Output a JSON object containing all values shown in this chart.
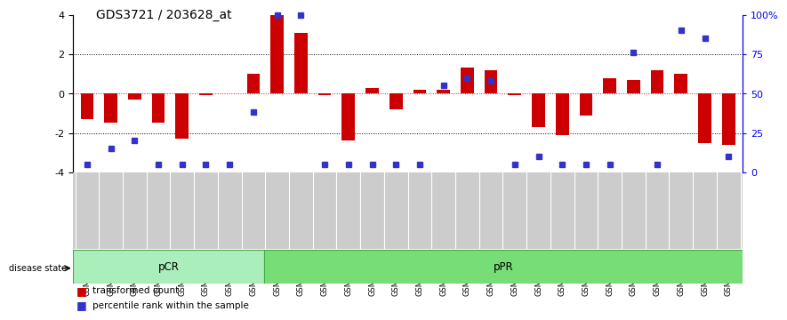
{
  "title": "GDS3721 / 203628_at",
  "samples": [
    "GSM559062",
    "GSM559063",
    "GSM559064",
    "GSM559065",
    "GSM559066",
    "GSM559067",
    "GSM559068",
    "GSM559069",
    "GSM559042",
    "GSM559043",
    "GSM559044",
    "GSM559045",
    "GSM559046",
    "GSM559047",
    "GSM559048",
    "GSM559049",
    "GSM559050",
    "GSM559051",
    "GSM559052",
    "GSM559053",
    "GSM559054",
    "GSM559055",
    "GSM559056",
    "GSM559057",
    "GSM559058",
    "GSM559059",
    "GSM559060",
    "GSM559061"
  ],
  "transformed_counts": [
    -1.3,
    -1.5,
    -0.3,
    -1.5,
    -2.3,
    -0.1,
    0.0,
    1.0,
    4.0,
    3.1,
    -0.1,
    -2.4,
    0.3,
    -0.8,
    0.2,
    0.2,
    1.3,
    1.2,
    -0.1,
    -1.7,
    -2.1,
    -1.1,
    0.8,
    0.7,
    1.2,
    1.0,
    -2.5,
    -2.6
  ],
  "percentile_ranks": [
    5,
    15,
    20,
    5,
    5,
    5,
    5,
    38,
    100,
    100,
    5,
    5,
    5,
    5,
    5,
    55,
    60,
    58,
    5,
    10,
    5,
    5,
    5,
    76,
    5,
    90,
    85,
    10
  ],
  "pcr_count": 8,
  "ppr_count": 20,
  "bar_color": "#cc0000",
  "dot_color": "#3333cc",
  "pcr_color": "#aaeebb",
  "ppr_color": "#77dd77",
  "sample_bg_color": "#cccccc",
  "ylim": [
    -4,
    4
  ],
  "yticks": [
    -4,
    -2,
    0,
    2,
    4
  ],
  "ytick_labels": [
    "-4",
    "-2",
    "0",
    "2",
    "4"
  ],
  "right_yticks": [
    0,
    25,
    50,
    75,
    100
  ],
  "right_ytick_labels": [
    "0",
    "25",
    "50",
    "75",
    "100%"
  ],
  "title_fontsize": 10,
  "axis_fontsize": 8,
  "background_color": "#ffffff"
}
